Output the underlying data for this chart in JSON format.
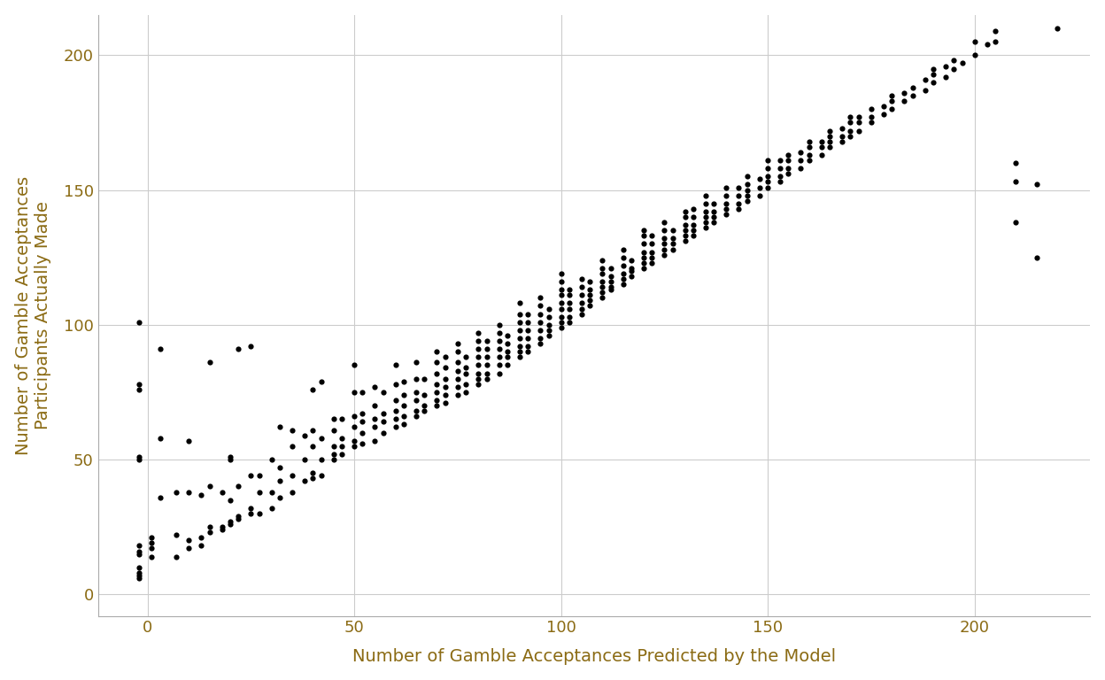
{
  "xlabel": "Number of Gamble Acceptances Predicted by the Model",
  "ylabel": "Number of Gamble Acceptances\nParticipants Actually Made",
  "xlim": [
    -12,
    228
  ],
  "ylim": [
    -8,
    215
  ],
  "xticks": [
    0,
    50,
    100,
    150,
    200
  ],
  "yticks": [
    0,
    50,
    100,
    150,
    200
  ],
  "point_color": "#000000",
  "point_size": 20,
  "background_color": "#ffffff",
  "grid_color": "#cccccc",
  "axis_label_color": "#8B6B14",
  "tick_label_color": "#8B6B14",
  "points": [
    [
      -2,
      6
    ],
    [
      -2,
      7
    ],
    [
      -2,
      8
    ],
    [
      -2,
      10
    ],
    [
      -2,
      15
    ],
    [
      -2,
      16
    ],
    [
      -2,
      18
    ],
    [
      -2,
      50
    ],
    [
      -2,
      51
    ],
    [
      -2,
      76
    ],
    [
      -2,
      78
    ],
    [
      -2,
      101
    ],
    [
      1,
      14
    ],
    [
      1,
      17
    ],
    [
      1,
      19
    ],
    [
      1,
      21
    ],
    [
      3,
      36
    ],
    [
      3,
      58
    ],
    [
      3,
      91
    ],
    [
      7,
      14
    ],
    [
      7,
      22
    ],
    [
      7,
      38
    ],
    [
      10,
      17
    ],
    [
      10,
      20
    ],
    [
      10,
      38
    ],
    [
      10,
      57
    ],
    [
      13,
      18
    ],
    [
      13,
      21
    ],
    [
      13,
      37
    ],
    [
      15,
      23
    ],
    [
      15,
      25
    ],
    [
      15,
      40
    ],
    [
      15,
      86
    ],
    [
      18,
      24
    ],
    [
      18,
      25
    ],
    [
      18,
      38
    ],
    [
      20,
      26
    ],
    [
      20,
      27
    ],
    [
      20,
      35
    ],
    [
      20,
      50
    ],
    [
      20,
      51
    ],
    [
      22,
      28
    ],
    [
      22,
      29
    ],
    [
      22,
      40
    ],
    [
      22,
      91
    ],
    [
      25,
      30
    ],
    [
      25,
      32
    ],
    [
      25,
      44
    ],
    [
      25,
      92
    ],
    [
      27,
      30
    ],
    [
      27,
      38
    ],
    [
      27,
      44
    ],
    [
      30,
      32
    ],
    [
      30,
      38
    ],
    [
      30,
      50
    ],
    [
      32,
      36
    ],
    [
      32,
      42
    ],
    [
      32,
      47
    ],
    [
      32,
      62
    ],
    [
      35,
      38
    ],
    [
      35,
      44
    ],
    [
      35,
      55
    ],
    [
      35,
      61
    ],
    [
      38,
      42
    ],
    [
      38,
      50
    ],
    [
      38,
      59
    ],
    [
      40,
      43
    ],
    [
      40,
      45
    ],
    [
      40,
      55
    ],
    [
      40,
      61
    ],
    [
      40,
      76
    ],
    [
      42,
      44
    ],
    [
      42,
      50
    ],
    [
      42,
      58
    ],
    [
      42,
      79
    ],
    [
      45,
      50
    ],
    [
      45,
      52
    ],
    [
      45,
      55
    ],
    [
      45,
      61
    ],
    [
      45,
      65
    ],
    [
      47,
      52
    ],
    [
      47,
      55
    ],
    [
      47,
      58
    ],
    [
      47,
      65
    ],
    [
      50,
      55
    ],
    [
      50,
      57
    ],
    [
      50,
      62
    ],
    [
      50,
      66
    ],
    [
      50,
      75
    ],
    [
      50,
      85
    ],
    [
      52,
      56
    ],
    [
      52,
      60
    ],
    [
      52,
      64
    ],
    [
      52,
      67
    ],
    [
      52,
      75
    ],
    [
      55,
      57
    ],
    [
      55,
      62
    ],
    [
      55,
      65
    ],
    [
      55,
      70
    ],
    [
      55,
      77
    ],
    [
      57,
      60
    ],
    [
      57,
      64
    ],
    [
      57,
      67
    ],
    [
      57,
      75
    ],
    [
      60,
      62
    ],
    [
      60,
      65
    ],
    [
      60,
      68
    ],
    [
      60,
      72
    ],
    [
      60,
      78
    ],
    [
      60,
      85
    ],
    [
      62,
      63
    ],
    [
      62,
      66
    ],
    [
      62,
      70
    ],
    [
      62,
      74
    ],
    [
      62,
      79
    ],
    [
      65,
      66
    ],
    [
      65,
      68
    ],
    [
      65,
      72
    ],
    [
      65,
      75
    ],
    [
      65,
      80
    ],
    [
      65,
      86
    ],
    [
      67,
      68
    ],
    [
      67,
      70
    ],
    [
      67,
      74
    ],
    [
      67,
      80
    ],
    [
      70,
      70
    ],
    [
      70,
      72
    ],
    [
      70,
      75
    ],
    [
      70,
      78
    ],
    [
      70,
      82
    ],
    [
      70,
      86
    ],
    [
      70,
      90
    ],
    [
      72,
      71
    ],
    [
      72,
      74
    ],
    [
      72,
      77
    ],
    [
      72,
      80
    ],
    [
      72,
      84
    ],
    [
      72,
      88
    ],
    [
      75,
      74
    ],
    [
      75,
      77
    ],
    [
      75,
      80
    ],
    [
      75,
      83
    ],
    [
      75,
      86
    ],
    [
      75,
      90
    ],
    [
      75,
      93
    ],
    [
      77,
      75
    ],
    [
      77,
      78
    ],
    [
      77,
      82
    ],
    [
      77,
      84
    ],
    [
      77,
      88
    ],
    [
      80,
      78
    ],
    [
      80,
      80
    ],
    [
      80,
      82
    ],
    [
      80,
      85
    ],
    [
      80,
      88
    ],
    [
      80,
      91
    ],
    [
      80,
      94
    ],
    [
      80,
      97
    ],
    [
      82,
      80
    ],
    [
      82,
      82
    ],
    [
      82,
      85
    ],
    [
      82,
      88
    ],
    [
      82,
      91
    ],
    [
      82,
      94
    ],
    [
      85,
      82
    ],
    [
      85,
      85
    ],
    [
      85,
      88
    ],
    [
      85,
      91
    ],
    [
      85,
      94
    ],
    [
      85,
      97
    ],
    [
      85,
      100
    ],
    [
      87,
      85
    ],
    [
      87,
      88
    ],
    [
      87,
      90
    ],
    [
      87,
      93
    ],
    [
      87,
      96
    ],
    [
      90,
      88
    ],
    [
      90,
      90
    ],
    [
      90,
      92
    ],
    [
      90,
      95
    ],
    [
      90,
      98
    ],
    [
      90,
      101
    ],
    [
      90,
      104
    ],
    [
      90,
      108
    ],
    [
      92,
      90
    ],
    [
      92,
      92
    ],
    [
      92,
      95
    ],
    [
      92,
      98
    ],
    [
      92,
      101
    ],
    [
      92,
      104
    ],
    [
      95,
      93
    ],
    [
      95,
      95
    ],
    [
      95,
      98
    ],
    [
      95,
      101
    ],
    [
      95,
      104
    ],
    [
      95,
      107
    ],
    [
      95,
      110
    ],
    [
      97,
      96
    ],
    [
      97,
      98
    ],
    [
      97,
      100
    ],
    [
      97,
      103
    ],
    [
      97,
      106
    ],
    [
      100,
      99
    ],
    [
      100,
      101
    ],
    [
      100,
      103
    ],
    [
      100,
      106
    ],
    [
      100,
      108
    ],
    [
      100,
      111
    ],
    [
      100,
      113
    ],
    [
      100,
      116
    ],
    [
      100,
      119
    ],
    [
      102,
      101
    ],
    [
      102,
      103
    ],
    [
      102,
      106
    ],
    [
      102,
      108
    ],
    [
      102,
      111
    ],
    [
      102,
      113
    ],
    [
      105,
      104
    ],
    [
      105,
      106
    ],
    [
      105,
      108
    ],
    [
      105,
      111
    ],
    [
      105,
      114
    ],
    [
      105,
      117
    ],
    [
      107,
      107
    ],
    [
      107,
      109
    ],
    [
      107,
      111
    ],
    [
      107,
      113
    ],
    [
      107,
      116
    ],
    [
      110,
      110
    ],
    [
      110,
      112
    ],
    [
      110,
      114
    ],
    [
      110,
      116
    ],
    [
      110,
      119
    ],
    [
      110,
      121
    ],
    [
      110,
      124
    ],
    [
      112,
      113
    ],
    [
      112,
      114
    ],
    [
      112,
      116
    ],
    [
      112,
      118
    ],
    [
      112,
      121
    ],
    [
      115,
      115
    ],
    [
      115,
      117
    ],
    [
      115,
      119
    ],
    [
      115,
      122
    ],
    [
      115,
      125
    ],
    [
      115,
      128
    ],
    [
      117,
      118
    ],
    [
      117,
      120
    ],
    [
      117,
      121
    ],
    [
      117,
      124
    ],
    [
      120,
      121
    ],
    [
      120,
      123
    ],
    [
      120,
      125
    ],
    [
      120,
      127
    ],
    [
      120,
      130
    ],
    [
      120,
      133
    ],
    [
      120,
      135
    ],
    [
      122,
      123
    ],
    [
      122,
      125
    ],
    [
      122,
      127
    ],
    [
      122,
      130
    ],
    [
      122,
      133
    ],
    [
      125,
      126
    ],
    [
      125,
      128
    ],
    [
      125,
      130
    ],
    [
      125,
      132
    ],
    [
      125,
      135
    ],
    [
      125,
      138
    ],
    [
      127,
      128
    ],
    [
      127,
      130
    ],
    [
      127,
      132
    ],
    [
      127,
      135
    ],
    [
      130,
      131
    ],
    [
      130,
      133
    ],
    [
      130,
      135
    ],
    [
      130,
      137
    ],
    [
      130,
      140
    ],
    [
      130,
      142
    ],
    [
      132,
      133
    ],
    [
      132,
      135
    ],
    [
      132,
      137
    ],
    [
      132,
      140
    ],
    [
      132,
      143
    ],
    [
      135,
      136
    ],
    [
      135,
      138
    ],
    [
      135,
      140
    ],
    [
      135,
      142
    ],
    [
      135,
      145
    ],
    [
      135,
      148
    ],
    [
      137,
      138
    ],
    [
      137,
      140
    ],
    [
      137,
      142
    ],
    [
      137,
      145
    ],
    [
      140,
      141
    ],
    [
      140,
      143
    ],
    [
      140,
      145
    ],
    [
      140,
      148
    ],
    [
      140,
      151
    ],
    [
      143,
      143
    ],
    [
      143,
      145
    ],
    [
      143,
      148
    ],
    [
      143,
      151
    ],
    [
      145,
      146
    ],
    [
      145,
      148
    ],
    [
      145,
      150
    ],
    [
      145,
      152
    ],
    [
      145,
      155
    ],
    [
      148,
      148
    ],
    [
      148,
      151
    ],
    [
      148,
      154
    ],
    [
      150,
      151
    ],
    [
      150,
      153
    ],
    [
      150,
      155
    ],
    [
      150,
      158
    ],
    [
      150,
      161
    ],
    [
      153,
      153
    ],
    [
      153,
      155
    ],
    [
      153,
      158
    ],
    [
      153,
      161
    ],
    [
      155,
      156
    ],
    [
      155,
      158
    ],
    [
      155,
      161
    ],
    [
      155,
      163
    ],
    [
      158,
      158
    ],
    [
      158,
      161
    ],
    [
      158,
      164
    ],
    [
      160,
      161
    ],
    [
      160,
      163
    ],
    [
      160,
      166
    ],
    [
      160,
      168
    ],
    [
      163,
      163
    ],
    [
      163,
      166
    ],
    [
      163,
      168
    ],
    [
      165,
      166
    ],
    [
      165,
      168
    ],
    [
      165,
      170
    ],
    [
      165,
      172
    ],
    [
      168,
      168
    ],
    [
      168,
      170
    ],
    [
      168,
      173
    ],
    [
      170,
      170
    ],
    [
      170,
      172
    ],
    [
      170,
      175
    ],
    [
      170,
      177
    ],
    [
      172,
      172
    ],
    [
      172,
      175
    ],
    [
      172,
      177
    ],
    [
      175,
      175
    ],
    [
      175,
      177
    ],
    [
      175,
      180
    ],
    [
      178,
      178
    ],
    [
      178,
      181
    ],
    [
      180,
      180
    ],
    [
      180,
      183
    ],
    [
      180,
      185
    ],
    [
      183,
      183
    ],
    [
      183,
      186
    ],
    [
      185,
      185
    ],
    [
      185,
      188
    ],
    [
      188,
      187
    ],
    [
      188,
      191
    ],
    [
      190,
      190
    ],
    [
      190,
      193
    ],
    [
      190,
      195
    ],
    [
      193,
      192
    ],
    [
      193,
      196
    ],
    [
      195,
      195
    ],
    [
      195,
      198
    ],
    [
      197,
      197
    ],
    [
      200,
      200
    ],
    [
      200,
      205
    ],
    [
      203,
      204
    ],
    [
      205,
      205
    ],
    [
      205,
      209
    ],
    [
      210,
      138
    ],
    [
      210,
      153
    ],
    [
      210,
      160
    ],
    [
      215,
      125
    ],
    [
      215,
      152
    ],
    [
      220,
      210
    ]
  ]
}
